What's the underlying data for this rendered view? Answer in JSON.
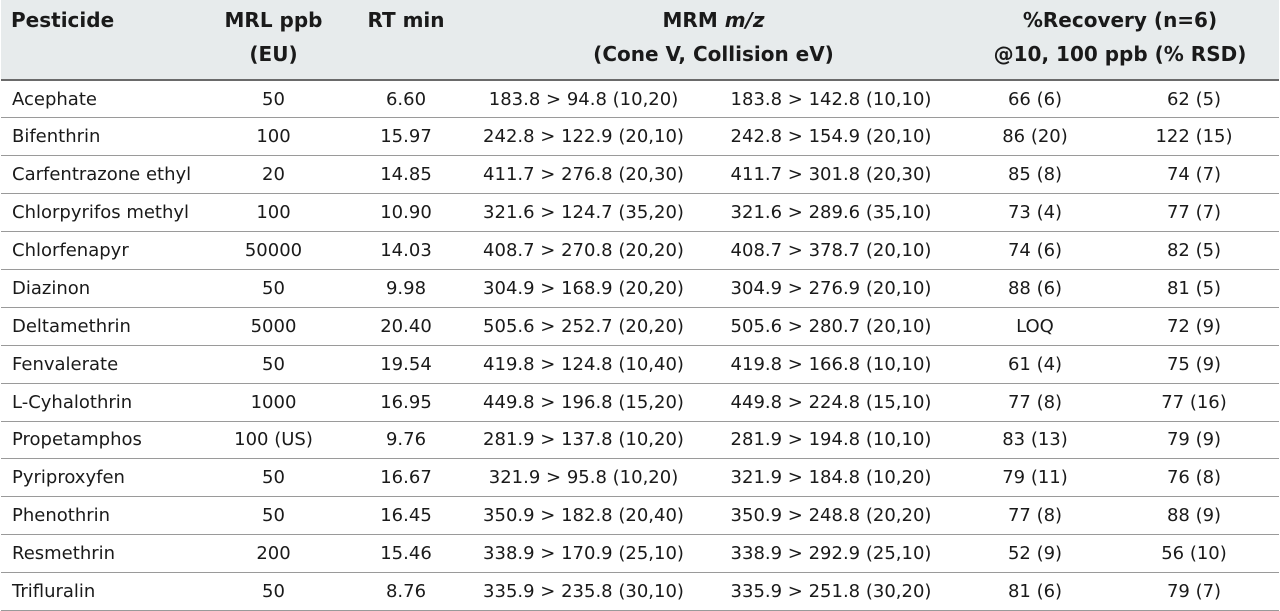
{
  "table": {
    "headers": {
      "pesticide": "Pesticide",
      "mrl_line1": "MRL ppb",
      "mrl_line2": "(EU)",
      "rt": "RT min",
      "mrm_line1_prefix": "MRM ",
      "mrm_line1_italic": "m/z",
      "mrm_line2": "(Cone V, Collision eV)",
      "recovery_line1": "%Recovery (n=6)",
      "recovery_line2": "@10, 100 ppb (% RSD)"
    },
    "rows": [
      {
        "pesticide": "Acephate",
        "mrl": "50",
        "rt": "6.60",
        "mrm1": "183.8 > 94.8 (10,20)",
        "mrm2": "183.8 > 142.8 (10,10)",
        "rec10": "66 (6)",
        "rec100": "62 (5)"
      },
      {
        "pesticide": "Bifenthrin",
        "mrl": "100",
        "rt": "15.97",
        "mrm1": "242.8 > 122.9 (20,10)",
        "mrm2": "242.8 > 154.9 (20,10)",
        "rec10": "86 (20)",
        "rec100": "122 (15)"
      },
      {
        "pesticide": "Carfentrazone ethyl",
        "mrl": "20",
        "rt": "14.85",
        "mrm1": "411.7 > 276.8 (20,30)",
        "mrm2": "411.7 > 301.8 (20,30)",
        "rec10": "85 (8)",
        "rec100": "74 (7)"
      },
      {
        "pesticide": "Chlorpyrifos methyl",
        "mrl": "100",
        "rt": "10.90",
        "mrm1": "321.6 > 124.7 (35,20)",
        "mrm2": "321.6 > 289.6 (35,10)",
        "rec10": "73 (4)",
        "rec100": "77 (7)"
      },
      {
        "pesticide": "Chlorfenapyr",
        "mrl": "50000",
        "rt": "14.03",
        "mrm1": "408.7 > 270.8 (20,20)",
        "mrm2": "408.7 > 378.7 (20,10)",
        "rec10": "74 (6)",
        "rec100": "82 (5)"
      },
      {
        "pesticide": "Diazinon",
        "mrl": "50",
        "rt": "9.98",
        "mrm1": "304.9 > 168.9 (20,20)",
        "mrm2": "304.9 > 276.9 (20,10)",
        "rec10": "88 (6)",
        "rec100": "81 (5)"
      },
      {
        "pesticide": "Deltamethrin",
        "mrl": "5000",
        "rt": "20.40",
        "mrm1": "505.6 > 252.7 (20,20)",
        "mrm2": "505.6 > 280.7 (20,10)",
        "rec10": "LOQ",
        "rec100": "72 (9)"
      },
      {
        "pesticide": "Fenvalerate",
        "mrl": "50",
        "rt": "19.54",
        "mrm1": "419.8 > 124.8 (10,40)",
        "mrm2": "419.8 > 166.8 (10,10)",
        "rec10": "61 (4)",
        "rec100": "75 (9)"
      },
      {
        "pesticide": "L-Cyhalothrin",
        "mrl": "1000",
        "rt": "16.95",
        "mrm1": "449.8 > 196.8 (15,20)",
        "mrm2": "449.8 > 224.8 (15,10)",
        "rec10": "77 (8)",
        "rec100": "77 (16)"
      },
      {
        "pesticide": "Propetamphos",
        "mrl": "100 (US)",
        "rt": "9.76",
        "mrm1": "281.9 > 137.8 (10,20)",
        "mrm2": "281.9 > 194.8 (10,10)",
        "rec10": "83 (13)",
        "rec100": "79 (9)"
      },
      {
        "pesticide": "Pyriproxyfen",
        "mrl": "50",
        "rt": "16.67",
        "mrm1": "321.9 > 95.8 (10,20)",
        "mrm2": "321.9 > 184.8 (10,20)",
        "rec10": "79 (11)",
        "rec100": "76 (8)"
      },
      {
        "pesticide": "Phenothrin",
        "mrl": "50",
        "rt": "16.45",
        "mrm1": "350.9 > 182.8 (20,40)",
        "mrm2": "350.9 > 248.8 (20,20)",
        "rec10": "77 (8)",
        "rec100": "88 (9)"
      },
      {
        "pesticide": "Resmethrin",
        "mrl": "200",
        "rt": "15.46",
        "mrm1": "338.9 > 170.9 (25,10)",
        "mrm2": "338.9 > 292.9 (25,10)",
        "rec10": "52 (9)",
        "rec100": "56 (10)"
      },
      {
        "pesticide": "Trifluralin",
        "mrl": "50",
        "rt": "8.76",
        "mrm1": "335.9 > 235.8 (30,10)",
        "mrm2": "335.9 > 251.8 (30,20)",
        "rec10": "81 (6)",
        "rec100": "79 (7)"
      }
    ]
  }
}
